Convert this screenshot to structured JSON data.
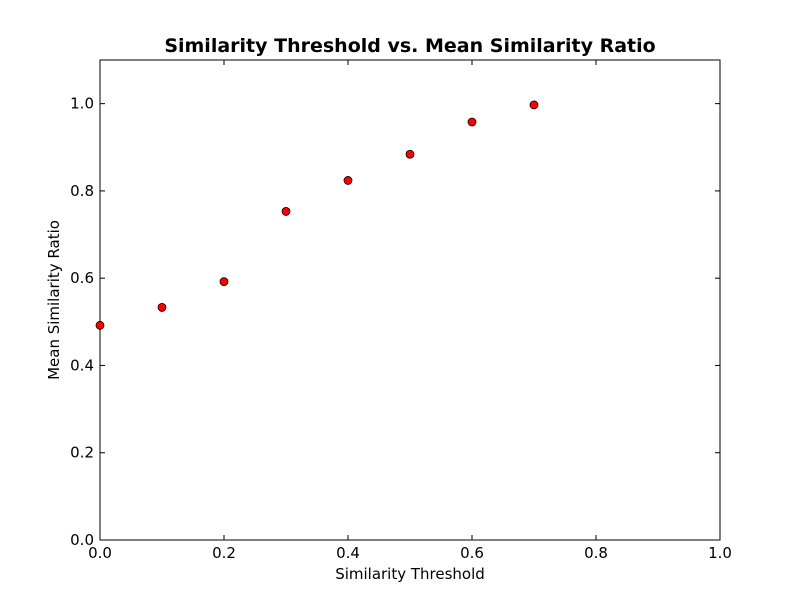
{
  "chart_data": {
    "type": "scatter",
    "title": "Similarity Threshold vs. Mean Similarity Ratio",
    "xlabel": "Similarity Threshold",
    "ylabel": "Mean Similarity Ratio",
    "xlim": [
      0.0,
      1.0
    ],
    "ylim": [
      0.0,
      1.1
    ],
    "x_ticks": [
      "0.0",
      "0.2",
      "0.4",
      "0.6",
      "0.8",
      "1.0"
    ],
    "y_ticks": [
      "0.0",
      "0.2",
      "0.4",
      "0.6",
      "0.8",
      "1.0"
    ],
    "grid": false,
    "series": [
      {
        "x": [
          0.0,
          0.1,
          0.2,
          0.3,
          0.4,
          0.5,
          0.6,
          0.7
        ],
        "y": [
          0.492,
          0.533,
          0.592,
          0.753,
          0.824,
          0.884,
          0.958,
          0.997
        ],
        "color": "#ff0000",
        "edge_color": "#000000",
        "marker": "circle"
      }
    ]
  }
}
